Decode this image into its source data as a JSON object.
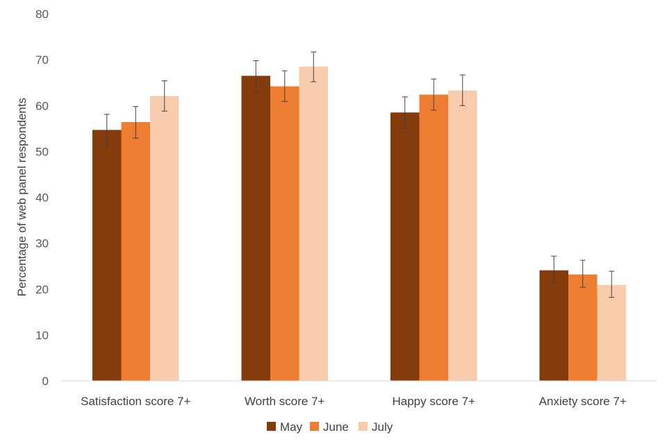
{
  "chart_data": {
    "type": "bar",
    "title": "",
    "xlabel": "",
    "ylabel": "Percentage of web panel respondents",
    "ylim": [
      0,
      80
    ],
    "yticks": [
      0,
      10,
      20,
      30,
      40,
      50,
      60,
      70,
      80
    ],
    "grid": false,
    "legend_position": "bottom",
    "categories": [
      "Satisfaction score 7+",
      "Worth score 7+",
      "Happy score 7+",
      "Anxiety score 7+"
    ],
    "series": [
      {
        "name": "May",
        "color": "#843C0C",
        "values": [
          54.7,
          66.5,
          58.5,
          24.1
        ],
        "err_low": [
          51.3,
          63.1,
          55.1,
          21.3
        ],
        "err_high": [
          58.1,
          69.8,
          61.9,
          27.2
        ]
      },
      {
        "name": "June",
        "color": "#ED7D31",
        "values": [
          56.4,
          64.2,
          62.4,
          23.2
        ],
        "err_low": [
          52.9,
          60.9,
          59.0,
          20.4
        ],
        "err_high": [
          59.8,
          67.6,
          65.8,
          26.3
        ]
      },
      {
        "name": "July",
        "color": "#F8CBAD",
        "values": [
          62.1,
          68.5,
          63.3,
          20.9
        ],
        "err_low": [
          58.8,
          65.2,
          60.0,
          18.2
        ],
        "err_high": [
          65.4,
          71.7,
          66.7,
          23.9
        ]
      }
    ]
  }
}
